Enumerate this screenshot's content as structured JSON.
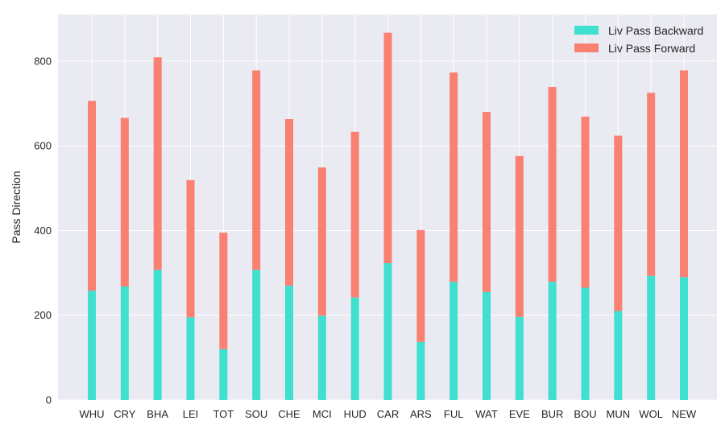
{
  "chart_data": {
    "type": "bar",
    "stacked": true,
    "title": "",
    "xlabel": "",
    "ylabel": "Pass Direction",
    "ylim": [
      0,
      910
    ],
    "yticks": [
      0,
      200,
      400,
      600,
      800
    ],
    "grid": true,
    "legend_position": "top-right",
    "categories": [
      "WHU",
      "CRY",
      "BHA",
      "LEI",
      "TOT",
      "SOU",
      "CHE",
      "MCI",
      "HUD",
      "CAR",
      "ARS",
      "FUL",
      "WAT",
      "EVE",
      "BUR",
      "BOU",
      "MUN",
      "WOL",
      "NEW"
    ],
    "series": [
      {
        "name": "Liv Pass Backward",
        "color": "#40E0D0",
        "values": [
          258,
          268,
          307,
          195,
          120,
          307,
          270,
          199,
          242,
          323,
          137,
          279,
          255,
          196,
          279,
          265,
          210,
          293,
          290
        ]
      },
      {
        "name": "Liv Pass Forward",
        "color": "#FA8072",
        "values": [
          448,
          398,
          502,
          324,
          275,
          471,
          393,
          350,
          391,
          544,
          264,
          494,
          425,
          380,
          460,
          404,
          414,
          432,
          488
        ]
      }
    ],
    "background_color": "#EAEAF2",
    "grid_color": "#FFFFFF"
  }
}
